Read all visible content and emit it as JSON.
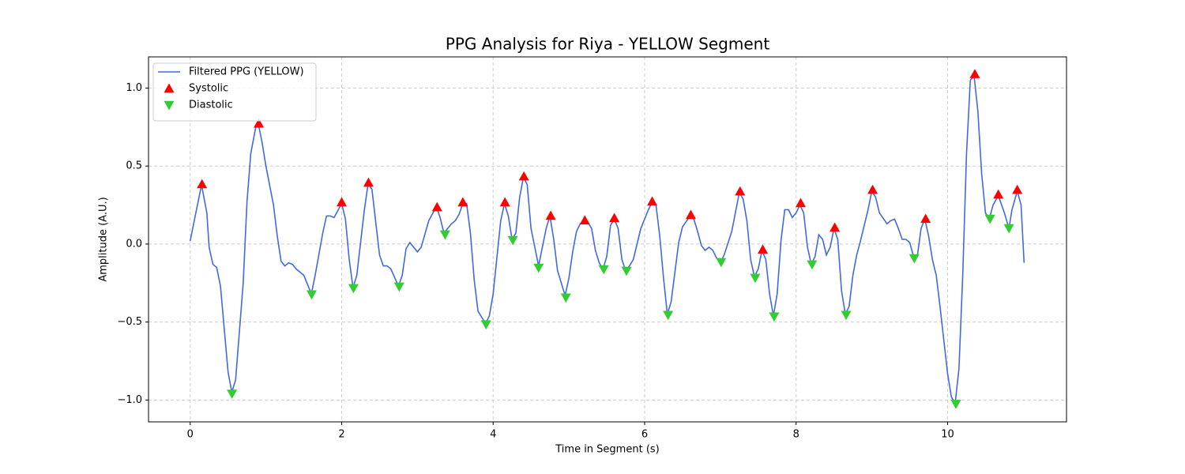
{
  "chart_data": {
    "type": "line",
    "title": "PPG Analysis for Riya - YELLOW Segment",
    "x_label": "Time in Segment (s)",
    "y_label": "Amplitude (A.U.)",
    "xlim": [
      -0.55,
      11.57
    ],
    "ylim": [
      -1.14,
      1.2
    ],
    "xticks": [
      0,
      2,
      4,
      6,
      8,
      10
    ],
    "yticks": [
      {
        "value": -1,
        "label": "−1.0"
      },
      {
        "value": -0.5,
        "label": "−0.5"
      },
      {
        "value": 0,
        "label": "0.0"
      },
      0.5,
      {
        "value": 1,
        "label": "1.0"
      }
    ],
    "grid": true,
    "legend": "upper left",
    "series": [
      {
        "name": "Filtered PPG (YELLOW)",
        "color": "#4169e1",
        "marker": "none",
        "x": [
          0,
          0.15,
          0.22,
          0.25,
          0.3,
          0.35,
          0.4,
          0.5,
          0.55,
          0.6,
          0.7,
          0.75,
          0.8,
          0.87,
          0.9,
          0.95,
          1.0,
          1.1,
          1.15,
          1.2,
          1.25,
          1.3,
          1.35,
          1.4,
          1.5,
          1.6,
          1.65,
          1.75,
          1.8,
          1.85,
          1.9,
          2.0,
          2.05,
          2.1,
          2.15,
          2.2,
          2.3,
          2.35,
          2.4,
          2.5,
          2.55,
          2.6,
          2.65,
          2.75,
          2.8,
          2.85,
          2.9,
          3.0,
          3.05,
          3.15,
          3.25,
          3.3,
          3.35,
          3.4,
          3.45,
          3.5,
          3.55,
          3.6,
          3.65,
          3.7,
          3.75,
          3.8,
          3.9,
          3.95,
          4.0,
          4.1,
          4.15,
          4.2,
          4.25,
          4.3,
          4.35,
          4.4,
          4.45,
          4.5,
          4.6,
          4.7,
          4.75,
          4.8,
          4.85,
          4.95,
          5.0,
          5.05,
          5.1,
          5.15,
          5.2,
          5.25,
          5.3,
          5.35,
          5.4,
          5.45,
          5.5,
          5.55,
          5.6,
          5.65,
          5.7,
          5.75,
          5.8,
          5.85,
          5.95,
          6.05,
          6.1,
          6.15,
          6.2,
          6.25,
          6.3,
          6.35,
          6.45,
          6.5,
          6.6,
          6.65,
          6.7,
          6.75,
          6.8,
          6.85,
          6.9,
          6.95,
          7.0,
          7.05,
          7.15,
          7.25,
          7.3,
          7.35,
          7.4,
          7.45,
          7.5,
          7.55,
          7.6,
          7.65,
          7.7,
          7.75,
          7.8,
          7.85,
          7.9,
          7.95,
          8.0,
          8.05,
          8.1,
          8.15,
          8.2,
          8.25,
          8.3,
          8.35,
          8.4,
          8.45,
          8.5,
          8.55,
          8.6,
          8.65,
          8.7,
          8.75,
          8.8,
          8.85,
          8.95,
          9.0,
          9.05,
          9.1,
          9.2,
          9.25,
          9.3,
          9.35,
          9.4,
          9.45,
          9.5,
          9.55,
          9.6,
          9.65,
          9.7,
          9.75,
          9.8,
          9.85,
          9.9,
          10.0,
          10.05,
          10.1,
          10.15,
          10.2,
          10.25,
          10.3,
          10.35,
          10.4,
          10.45,
          10.5,
          10.55,
          10.6,
          10.67,
          10.75,
          10.81,
          10.85,
          10.92,
          10.97,
          11.01
        ],
        "values": [
          0.02,
          0.38,
          0.2,
          -0.02,
          -0.13,
          -0.15,
          -0.27,
          -0.82,
          -0.95,
          -0.87,
          -0.25,
          0.27,
          0.58,
          0.76,
          0.77,
          0.65,
          0.5,
          0.25,
          0.05,
          -0.11,
          -0.14,
          -0.12,
          -0.13,
          -0.16,
          -0.2,
          -0.32,
          -0.2,
          0.07,
          0.18,
          0.18,
          0.17,
          0.26,
          0.16,
          -0.1,
          -0.28,
          -0.2,
          0.22,
          0.39,
          0.35,
          -0.07,
          -0.14,
          -0.14,
          -0.16,
          -0.27,
          -0.2,
          -0.03,
          0.01,
          -0.05,
          -0.02,
          0.15,
          0.24,
          0.17,
          0.07,
          0.1,
          0.13,
          0.15,
          0.19,
          0.26,
          0.26,
          0.07,
          -0.23,
          -0.43,
          -0.51,
          -0.46,
          -0.32,
          0.15,
          0.26,
          0.18,
          0.03,
          0.07,
          0.3,
          0.43,
          0.38,
          0.1,
          -0.14,
          0.1,
          0.18,
          0.03,
          -0.17,
          -0.33,
          -0.22,
          -0.05,
          0.08,
          0.13,
          0.15,
          0.14,
          0.1,
          -0.04,
          -0.12,
          -0.16,
          -0.08,
          0.12,
          0.16,
          0.1,
          -0.1,
          -0.17,
          -0.14,
          -0.1,
          0.1,
          0.22,
          0.27,
          0.25,
          0.05,
          -0.22,
          -0.45,
          -0.37,
          0.01,
          0.11,
          0.18,
          0.16,
          0.08,
          -0.01,
          -0.04,
          -0.02,
          -0.04,
          -0.09,
          -0.12,
          -0.07,
          0.08,
          0.33,
          0.29,
          0.15,
          -0.1,
          -0.21,
          -0.16,
          -0.04,
          -0.1,
          -0.32,
          -0.46,
          -0.32,
          0.02,
          0.22,
          0.22,
          0.17,
          0.2,
          0.25,
          0.2,
          -0.02,
          -0.13,
          -0.08,
          0.06,
          0.03,
          -0.07,
          -0.02,
          0.1,
          0.03,
          -0.3,
          -0.45,
          -0.4,
          -0.2,
          -0.07,
          0.02,
          0.22,
          0.34,
          0.3,
          0.2,
          0.13,
          0.15,
          0.16,
          0.1,
          0.03,
          0.03,
          0.01,
          -0.08,
          -0.08,
          0.1,
          0.16,
          0.05,
          -0.1,
          -0.2,
          -0.4,
          -0.83,
          -0.98,
          -1.02,
          -0.8,
          -0.2,
          0.58,
          1.05,
          1.08,
          0.85,
          0.45,
          0.2,
          0.16,
          0.25,
          0.31,
          0.2,
          0.1,
          0.22,
          0.34,
          0.25,
          -0.12
        ]
      },
      {
        "name": "Systolic",
        "color": "#ff0000",
        "marker": "triangle-up",
        "x": [
          0.156,
          0.906,
          2.0,
          2.354,
          3.26,
          3.6,
          4.156,
          4.406,
          4.76,
          5.21,
          5.6,
          6.1,
          6.61,
          7.26,
          7.56,
          8.06,
          8.51,
          9.01,
          9.71,
          10.36,
          10.67,
          10.92
        ],
        "values": [
          0.384,
          0.773,
          0.268,
          0.394,
          0.237,
          0.268,
          0.268,
          0.434,
          0.182,
          0.152,
          0.167,
          0.273,
          0.187,
          0.338,
          -0.035,
          0.263,
          0.106,
          0.348,
          0.162,
          1.09,
          0.318,
          0.348
        ]
      },
      {
        "name": "Diastolic",
        "color": "#32cd32",
        "marker": "triangle-down",
        "x": [
          0.552,
          1.604,
          2.156,
          2.76,
          3.365,
          3.906,
          4.26,
          4.6,
          4.96,
          5.46,
          5.76,
          6.31,
          7.01,
          7.46,
          7.71,
          8.21,
          8.66,
          9.56,
          10.11,
          10.56,
          10.81
        ],
        "values": [
          -0.96,
          -0.323,
          -0.283,
          -0.273,
          0.061,
          -0.515,
          0.025,
          -0.152,
          -0.343,
          -0.162,
          -0.172,
          -0.455,
          -0.116,
          -0.217,
          -0.465,
          -0.131,
          -0.455,
          -0.091,
          -1.025,
          0.162,
          0.101
        ]
      }
    ]
  }
}
